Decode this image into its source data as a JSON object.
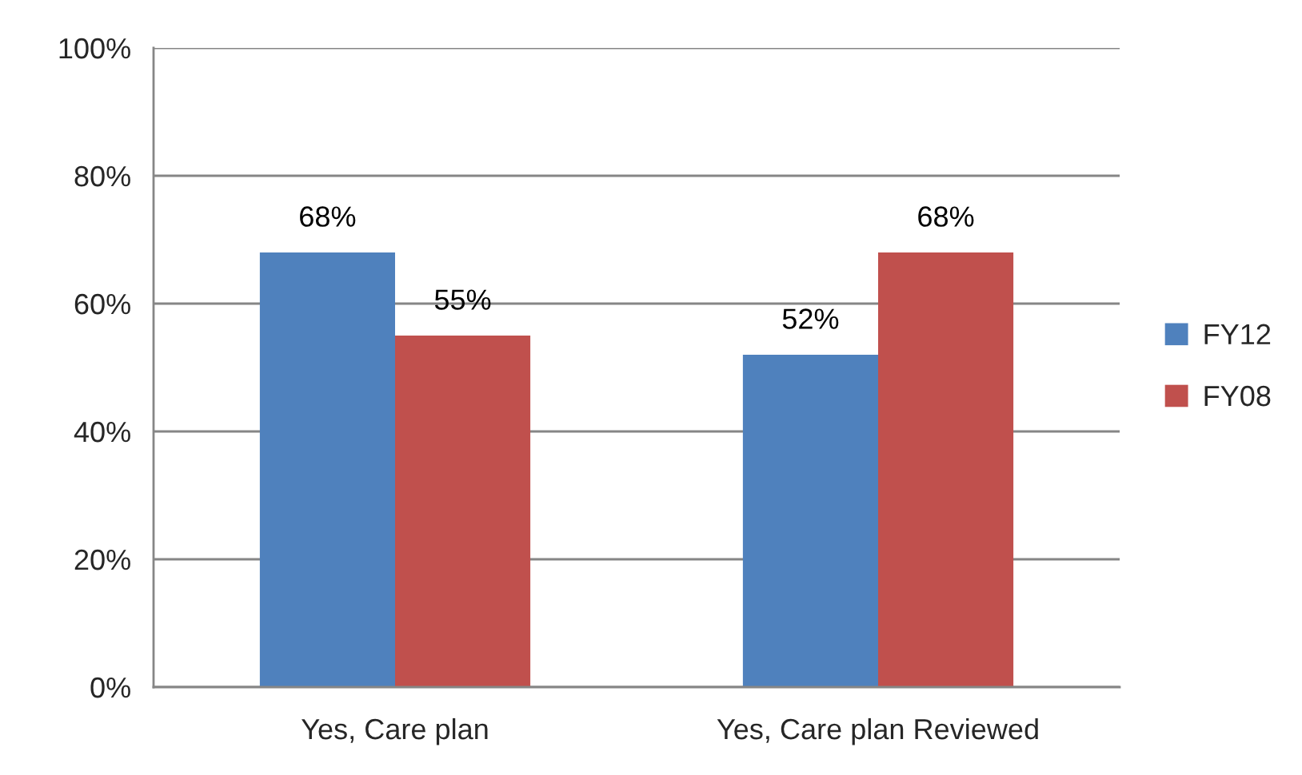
{
  "chart_data": {
    "type": "bar",
    "categories": [
      "Yes, Care plan",
      "Yes, Care plan Reviewed"
    ],
    "series": [
      {
        "name": "FY12",
        "color": "#4f81bd",
        "values": [
          68,
          52
        ],
        "value_labels": [
          "68%",
          "52%"
        ]
      },
      {
        "name": "FY08",
        "color": "#c0504d",
        "values": [
          55,
          68
        ],
        "value_labels": [
          "55%",
          "68%"
        ]
      }
    ],
    "ylim": [
      0,
      100
    ],
    "yticks": [
      {
        "value": 0,
        "label": "0%"
      },
      {
        "value": 20,
        "label": "20%"
      },
      {
        "value": 40,
        "label": "40%"
      },
      {
        "value": 60,
        "label": "60%"
      },
      {
        "value": 80,
        "label": "80%"
      },
      {
        "value": 100,
        "label": "100%"
      }
    ],
    "grid": "y",
    "legend": "right"
  }
}
